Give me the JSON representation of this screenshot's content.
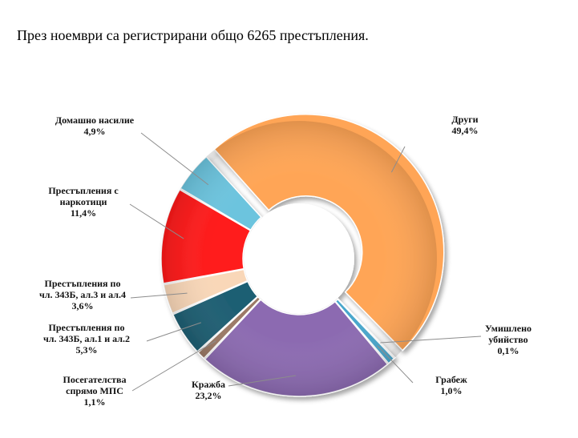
{
  "heading": "През ноември са регистрирани общо 6265 престъпления.",
  "chart_data": {
    "type": "pie",
    "variant": "donut",
    "title": "",
    "series": [
      {
        "name": "Други",
        "label_lines": [
          "Други"
        ],
        "value": 49.4,
        "value_text": "49,4%",
        "color": "#FFA556"
      },
      {
        "name": "Умишлено убийство",
        "label_lines": [
          "Умишлено",
          "убийство"
        ],
        "value": 0.1,
        "value_text": "0,1%",
        "color": "#2E8FB7"
      },
      {
        "name": "Грабеж",
        "label_lines": [
          "Грабеж"
        ],
        "value": 1.0,
        "value_text": "1,0%",
        "color": "#4AA7CC"
      },
      {
        "name": "Кражба",
        "label_lines": [
          "Кражба"
        ],
        "value": 23.2,
        "value_text": "23,2%",
        "color": "#8C6BB1"
      },
      {
        "name": "Посегателства спрямо МПС",
        "label_lines": [
          "Посегателства",
          "спрямо МПС"
        ],
        "value": 1.1,
        "value_text": "1,1%",
        "color": "#9C7A66"
      },
      {
        "name": "Престъпления по чл. 343Б, ал.1 и ал.2",
        "label_lines": [
          "Престъпления по",
          "чл. 343Б, ал.1 и ал.2"
        ],
        "value": 5.3,
        "value_text": "5,3%",
        "color": "#1F5F73"
      },
      {
        "name": "Престъпления по чл. 343Б, ал.3 и ал.4",
        "label_lines": [
          "Престъпления по",
          "чл. 343Б, ал.3 и ал.4"
        ],
        "value": 3.6,
        "value_text": "3,6%",
        "color": "#F9D7B8"
      },
      {
        "name": "Престъпления с наркотици",
        "label_lines": [
          "Престъпления с",
          "наркотици"
        ],
        "value": 11.4,
        "value_text": "11,4%",
        "color": "#FF1A1A"
      },
      {
        "name": "Домашно насилие",
        "label_lines": [
          "Домашно насилие"
        ],
        "value": 4.9,
        "value_text": "4,9%",
        "color": "#6CC4DE"
      }
    ]
  }
}
